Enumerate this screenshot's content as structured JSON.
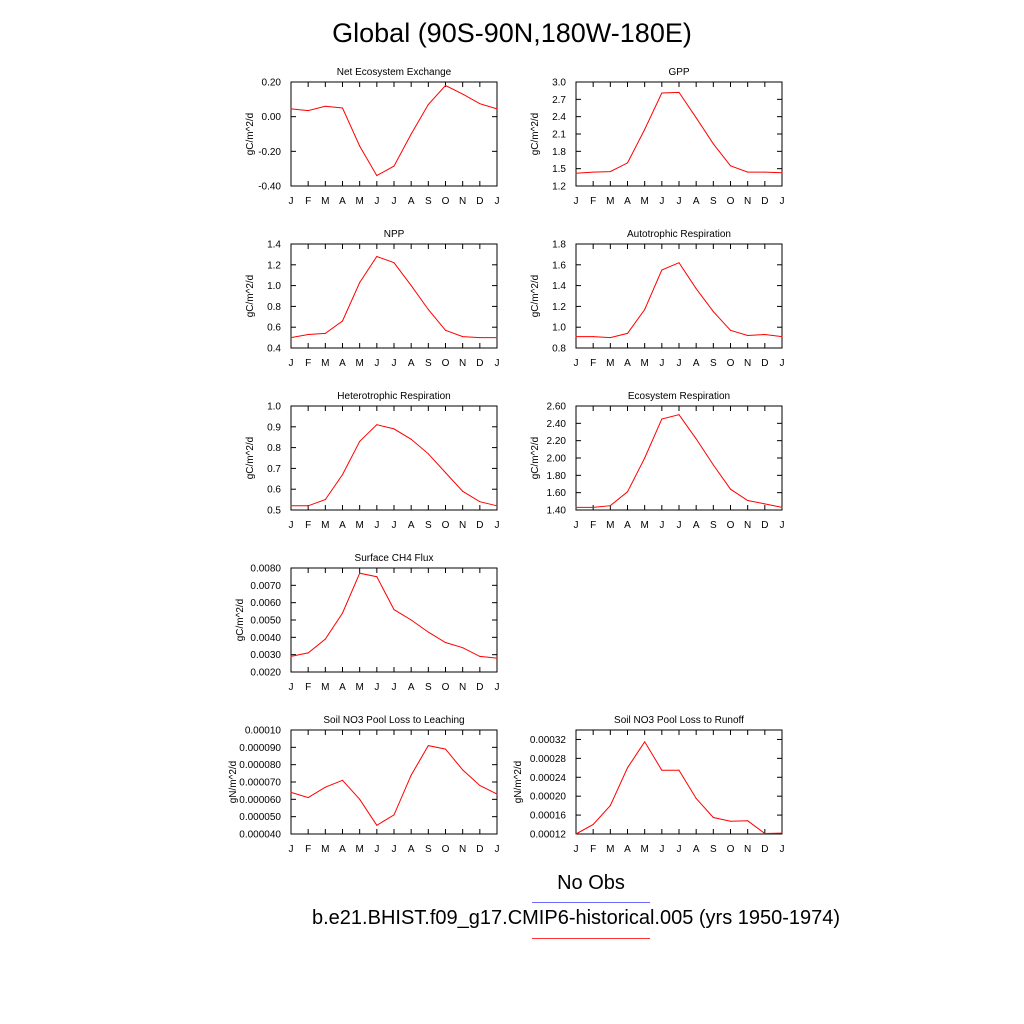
{
  "title": "Global (90S-90N,180W-180E)",
  "month_labels": [
    "J",
    "F",
    "M",
    "A",
    "M",
    "J",
    "J",
    "A",
    "S",
    "O",
    "N",
    "D",
    "J"
  ],
  "legend": {
    "obs_label": "No Obs",
    "obs_color": "#6b6bff",
    "model_label": "b.e21.BHIST.f09_g17.CMIP6-historical.005 (yrs 1950-1974)",
    "model_color": "#ff3333"
  },
  "series_color": "#ff0000",
  "chart_data": [
    {
      "type": "line",
      "title": "Net Ecosystem Exchange",
      "ylabel": "gC/m^2/d",
      "ylim": [
        -0.4,
        0.2
      ],
      "yticks": [
        "0.20",
        "0.00",
        "-0.20",
        "-0.40"
      ],
      "ytick_values": [
        0.2,
        0.0,
        -0.2,
        -0.4
      ],
      "values": [
        0.045,
        0.035,
        0.06,
        0.05,
        -0.17,
        -0.34,
        -0.285,
        -0.1,
        0.07,
        0.18,
        0.13,
        0.075,
        0.045
      ]
    },
    {
      "type": "line",
      "title": "GPP",
      "ylabel": "gC/m^2/d",
      "ylim": [
        1.2,
        3.0
      ],
      "yticks": [
        "3.0",
        "2.7",
        "2.4",
        "2.1",
        "1.8",
        "1.5",
        "1.2"
      ],
      "ytick_values": [
        3.0,
        2.7,
        2.4,
        2.1,
        1.8,
        1.5,
        1.2
      ],
      "values": [
        1.42,
        1.44,
        1.45,
        1.6,
        2.18,
        2.81,
        2.82,
        2.38,
        1.93,
        1.55,
        1.44,
        1.44,
        1.43
      ]
    },
    {
      "type": "line",
      "title": "NPP",
      "ylabel": "gC/m^2/d",
      "ylim": [
        0.4,
        1.4
      ],
      "yticks": [
        "1.4",
        "1.2",
        "1.0",
        "0.8",
        "0.6",
        "0.4"
      ],
      "ytick_values": [
        1.4,
        1.2,
        1.0,
        0.8,
        0.6,
        0.4
      ],
      "values": [
        0.5,
        0.53,
        0.54,
        0.66,
        1.03,
        1.28,
        1.22,
        1.0,
        0.77,
        0.57,
        0.51,
        0.5,
        0.5
      ]
    },
    {
      "type": "line",
      "title": "Autotrophic Respiration",
      "ylabel": "gC/m^2/d",
      "ylim": [
        0.8,
        1.8
      ],
      "yticks": [
        "1.8",
        "1.6",
        "1.4",
        "1.2",
        "1.0",
        "0.8"
      ],
      "ytick_values": [
        1.8,
        1.6,
        1.4,
        1.2,
        1.0,
        0.8
      ],
      "values": [
        0.91,
        0.91,
        0.9,
        0.94,
        1.17,
        1.55,
        1.62,
        1.37,
        1.15,
        0.97,
        0.92,
        0.93,
        0.91
      ]
    },
    {
      "type": "line",
      "title": "Heterotrophic Respiration",
      "ylabel": "gC/m^2/d",
      "ylim": [
        0.5,
        1.0
      ],
      "yticks": [
        "1.0",
        "0.9",
        "0.8",
        "0.7",
        "0.6",
        "0.5"
      ],
      "ytick_values": [
        1.0,
        0.9,
        0.8,
        0.7,
        0.6,
        0.5
      ],
      "values": [
        0.52,
        0.52,
        0.55,
        0.67,
        0.83,
        0.91,
        0.89,
        0.84,
        0.77,
        0.68,
        0.59,
        0.54,
        0.52
      ]
    },
    {
      "type": "line",
      "title": "Ecosystem Respiration",
      "ylabel": "gC/m^2/d",
      "ylim": [
        1.4,
        2.6
      ],
      "yticks": [
        "2.60",
        "2.40",
        "2.20",
        "2.00",
        "1.80",
        "1.60",
        "1.40"
      ],
      "ytick_values": [
        2.6,
        2.4,
        2.2,
        2.0,
        1.8,
        1.6,
        1.4
      ],
      "values": [
        1.43,
        1.43,
        1.45,
        1.61,
        2.0,
        2.45,
        2.5,
        2.22,
        1.92,
        1.64,
        1.51,
        1.47,
        1.43
      ]
    },
    {
      "type": "line",
      "title": "Surface CH4 Flux",
      "ylabel": "gC/m^2/d",
      "ylim": [
        0.002,
        0.008
      ],
      "yticks": [
        "0.0080",
        "0.0070",
        "0.0060",
        "0.0050",
        "0.0040",
        "0.0030",
        "0.0020"
      ],
      "ytick_values": [
        0.008,
        0.007,
        0.006,
        0.005,
        0.004,
        0.003,
        0.002
      ],
      "values": [
        0.0029,
        0.0031,
        0.0039,
        0.0054,
        0.0077,
        0.0075,
        0.0056,
        0.005,
        0.0043,
        0.0037,
        0.0034,
        0.0029,
        0.0028
      ]
    },
    {
      "type": "line",
      "title": "Soil NO3 Pool Loss to Leaching",
      "ylabel": "gN/m^2/d",
      "ylim": [
        4e-05,
        0.0001
      ],
      "yticks": [
        "0.00010",
        "0.000090",
        "0.000080",
        "0.000070",
        "0.000060",
        "0.000050",
        "0.000040"
      ],
      "ytick_values": [
        0.0001,
        9e-05,
        8e-05,
        7e-05,
        6e-05,
        5e-05,
        4e-05
      ],
      "values": [
        6.4e-05,
        6.1e-05,
        6.7e-05,
        7.1e-05,
        6e-05,
        4.5e-05,
        5.1e-05,
        7.4e-05,
        9.1e-05,
        8.9e-05,
        7.7e-05,
        6.8e-05,
        6.3e-05
      ]
    },
    {
      "type": "line",
      "title": "Soil NO3 Pool Loss to Runoff",
      "ylabel": "gN/m^2/d",
      "ylim": [
        0.00012,
        0.00034
      ],
      "yticks": [
        "0.00032",
        "0.00028",
        "0.00024",
        "0.00020",
        "0.00016",
        "0.00012"
      ],
      "ytick_values": [
        0.00032,
        0.00028,
        0.00024,
        0.0002,
        0.00016,
        0.00012
      ],
      "values": [
        0.00012,
        0.00014,
        0.00018,
        0.00026,
        0.000315,
        0.000255,
        0.000255,
        0.000195,
        0.000155,
        0.000147,
        0.000148,
        0.000121,
        0.000122
      ]
    }
  ]
}
